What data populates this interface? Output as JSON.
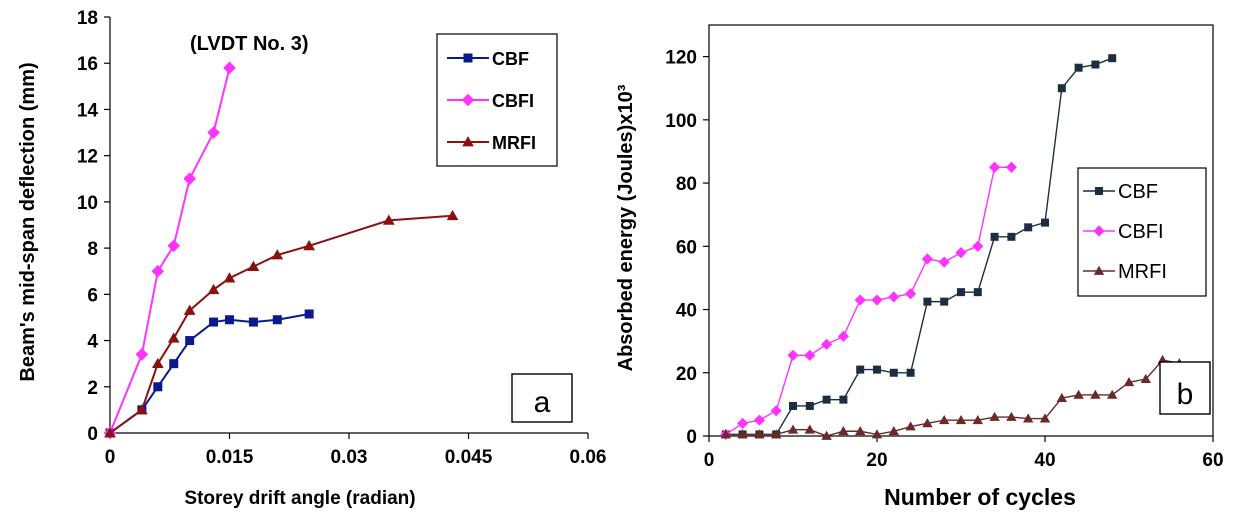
{
  "chart_data": [
    {
      "type": "line",
      "title": "",
      "annotation": "(LVDT No. 3)",
      "panel_label": "a",
      "xlabel": "Storey drift angle (radian)",
      "ylabel": "Beam's mid-span deflection (mm)",
      "xlim": [
        0,
        0.06
      ],
      "ylim": [
        0,
        18
      ],
      "xticks": [
        "0",
        "0.015",
        "0.03",
        "0.045",
        "0.06"
      ],
      "yticks": [
        "0",
        "2",
        "4",
        "6",
        "8",
        "10",
        "12",
        "14",
        "16",
        "18"
      ],
      "grid": false,
      "legend_position": "top-right",
      "series": [
        {
          "name": "CBF",
          "color": "#0a1a8c",
          "marker": "square",
          "x": [
            0,
            0.004,
            0.006,
            0.008,
            0.01,
            0.013,
            0.015,
            0.018,
            0.021,
            0.025
          ],
          "y": [
            0,
            1.0,
            2.0,
            3.0,
            4.0,
            4.8,
            4.9,
            4.8,
            4.9,
            5.15
          ]
        },
        {
          "name": "CBFI",
          "color": "#ff33ff",
          "marker": "diamond",
          "x": [
            0,
            0.004,
            0.006,
            0.008,
            0.01,
            0.013,
            0.015
          ],
          "y": [
            0,
            3.4,
            7.0,
            8.1,
            11.0,
            13.0,
            15.8
          ]
        },
        {
          "name": "MRFI",
          "color": "#8b1010",
          "marker": "triangle",
          "x": [
            0,
            0.004,
            0.006,
            0.008,
            0.01,
            0.013,
            0.015,
            0.018,
            0.021,
            0.025,
            0.035,
            0.043
          ],
          "y": [
            0,
            1.0,
            3.0,
            4.1,
            5.3,
            6.2,
            6.7,
            7.2,
            7.7,
            8.1,
            9.2,
            9.4
          ]
        }
      ]
    },
    {
      "type": "line",
      "title": "",
      "panel_label": "b",
      "xlabel": "Number  of cycles",
      "ylabel": "Absorbed energy (Joules)x10³",
      "xlim": [
        0,
        60
      ],
      "ylim": [
        0,
        130
      ],
      "xticks": [
        "0",
        "20",
        "40",
        "60"
      ],
      "yticks": [
        "0",
        "20",
        "40",
        "60",
        "80",
        "100",
        "120"
      ],
      "grid": false,
      "legend_position": "center-right",
      "series": [
        {
          "name": "CBF",
          "color": "#1c2e40",
          "marker": "square",
          "x": [
            2,
            4,
            6,
            8,
            10,
            12,
            14,
            16,
            18,
            20,
            22,
            24,
            26,
            28,
            30,
            32,
            34,
            36,
            38,
            40,
            42,
            44,
            46,
            48
          ],
          "y": [
            0.5,
            0.5,
            0.5,
            0.5,
            9.5,
            9.5,
            11.5,
            11.5,
            21,
            21,
            20,
            20,
            42.5,
            42.5,
            45.5,
            45.5,
            63,
            63,
            66,
            67.5,
            110,
            116.5,
            117.5,
            119.5
          ]
        },
        {
          "name": "CBFI",
          "color": "#ff33ff",
          "marker": "diamond",
          "x": [
            2,
            4,
            6,
            8,
            10,
            12,
            14,
            16,
            18,
            20,
            22,
            24,
            26,
            28,
            30,
            32,
            34,
            36
          ],
          "y": [
            0.5,
            4,
            5,
            8,
            25.5,
            25.5,
            29,
            31.5,
            43,
            43,
            44,
            45,
            56,
            55,
            58,
            60,
            85,
            85
          ]
        },
        {
          "name": "MRFI",
          "color": "#6b2a2a",
          "marker": "triangle",
          "x": [
            2,
            4,
            6,
            8,
            10,
            12,
            14,
            16,
            18,
            20,
            22,
            24,
            26,
            28,
            30,
            32,
            34,
            36,
            38,
            40,
            42,
            44,
            46,
            48,
            50,
            52,
            54,
            56
          ],
          "y": [
            0.5,
            0.5,
            0.5,
            0.5,
            2,
            2,
            0,
            1.5,
            1.5,
            0.5,
            1.5,
            3,
            4,
            5,
            5,
            5,
            6,
            6,
            5.5,
            5.5,
            12,
            13,
            13,
            13,
            17,
            18,
            24,
            23
          ]
        }
      ]
    }
  ]
}
